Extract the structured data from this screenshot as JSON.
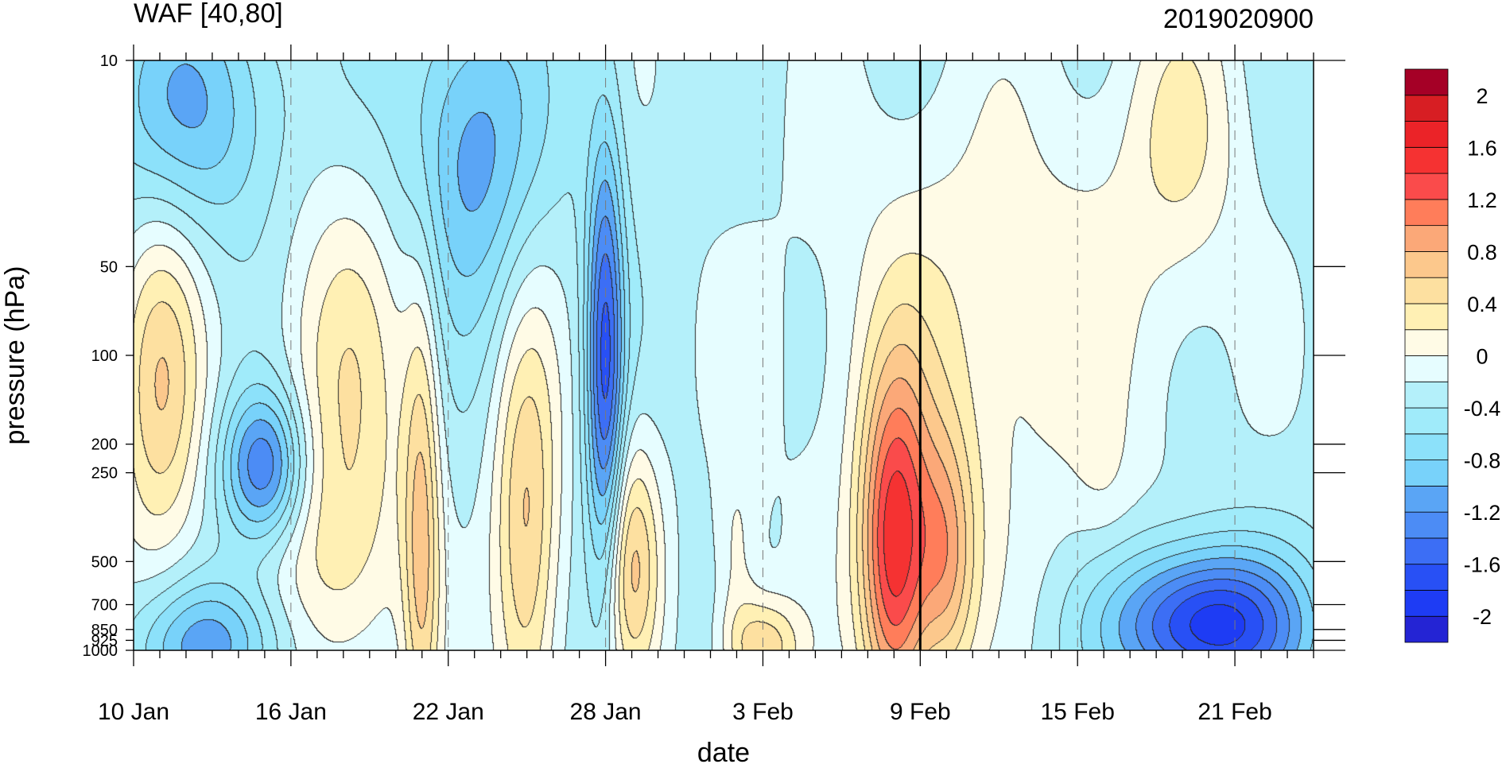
{
  "chart_data": {
    "type": "heatmap",
    "title": "WAF [40,80]",
    "subtitle": "2019020900",
    "xlabel": "date",
    "ylabel": "pressure (hPa)",
    "y_scale": "log",
    "y_reversed": true,
    "x_range": [
      "2019-01-10",
      "2019-02-24"
    ],
    "y_range": [
      1000,
      10
    ],
    "x_ticks": [
      {
        "date": "2019-01-10",
        "label": "10 Jan"
      },
      {
        "date": "2019-01-16",
        "label": "16 Jan"
      },
      {
        "date": "2019-01-22",
        "label": "22 Jan"
      },
      {
        "date": "2019-01-28",
        "label": "28 Jan"
      },
      {
        "date": "2019-02-03",
        "label": "3 Feb"
      },
      {
        "date": "2019-02-09",
        "label": "9 Feb"
      },
      {
        "date": "2019-02-15",
        "label": "15 Feb"
      },
      {
        "date": "2019-02-21",
        "label": "21 Feb"
      }
    ],
    "y_ticks": [
      {
        "value": 10,
        "label": "10"
      },
      {
        "value": 50,
        "label": "50"
      },
      {
        "value": 100,
        "label": "100"
      },
      {
        "value": 200,
        "label": "200"
      },
      {
        "value": 250,
        "label": "250"
      },
      {
        "value": 500,
        "label": "500"
      },
      {
        "value": 700,
        "label": "700"
      },
      {
        "value": 850,
        "label": "850"
      },
      {
        "value": 925,
        "label": "925"
      },
      {
        "value": 1000,
        "label": "1000"
      }
    ],
    "reference_line_date": "2019-02-09",
    "colorbar": {
      "levels": [
        -2.2,
        -2.0,
        -1.8,
        -1.6,
        -1.4,
        -1.2,
        -1.0,
        -0.8,
        -0.6,
        -0.4,
        -0.2,
        0,
        0.2,
        0.4,
        0.6,
        0.8,
        1.0,
        1.2,
        1.4,
        1.6,
        1.8,
        2.0,
        2.2
      ],
      "colors": [
        "#2424d4",
        "#1e3cf4",
        "#2850f5",
        "#3c6ef5",
        "#4c8cf5",
        "#5aa5f5",
        "#78d2fa",
        "#8ce1fa",
        "#a0ebfa",
        "#b4f0fa",
        "#e6fdff",
        "#fffbe6",
        "#fff0b4",
        "#fde0a0",
        "#fcc88c",
        "#fba878",
        "#ff7d5a",
        "#fa4b4b",
        "#f53232",
        "#eb2328",
        "#d71e23",
        "#a50026"
      ],
      "labels": [
        {
          "value": 2.0,
          "label": "2"
        },
        {
          "value": 1.6,
          "label": "1.6"
        },
        {
          "value": 1.2,
          "label": "1.2"
        },
        {
          "value": 0.8,
          "label": "0.8"
        },
        {
          "value": 0.4,
          "label": "0.4"
        },
        {
          "value": 0.0,
          "label": "0"
        },
        {
          "value": -0.4,
          "label": "-0.4"
        },
        {
          "value": -0.8,
          "label": "-0.8"
        },
        {
          "value": -1.2,
          "label": "-1.2"
        },
        {
          "value": -1.6,
          "label": "-1.6"
        },
        {
          "value": -2.0,
          "label": "-2"
        }
      ]
    },
    "background_value": -0.3,
    "features": [
      {
        "date": "2019-01-11",
        "p": 130,
        "sd": 1.2,
        "sp": 0.45,
        "v": 0.75
      },
      {
        "date": "2019-01-18",
        "p": 95,
        "sd": 1.8,
        "sp": 0.42,
        "v": 0.45
      },
      {
        "date": "2019-01-15",
        "p": 240,
        "sd": 1.1,
        "sp": 0.18,
        "v": -1.25
      },
      {
        "date": "2019-01-18",
        "p": 500,
        "sd": 1.8,
        "sp": 0.35,
        "v": 0.45
      },
      {
        "date": "2019-01-21",
        "p": 400,
        "sd": 0.5,
        "sp": 0.6,
        "v": 0.75
      },
      {
        "date": "2019-01-25",
        "p": 400,
        "sd": 0.9,
        "sp": 0.55,
        "v": 0.85
      },
      {
        "date": "2019-01-29",
        "p": 500,
        "sd": 0.8,
        "sp": 0.3,
        "v": 0.8
      },
      {
        "date": "2019-01-28",
        "p": 110,
        "sd": 0.5,
        "sp": 0.55,
        "v": -1.45
      },
      {
        "date": "2019-01-23",
        "p": 20,
        "sd": 1.8,
        "sp": 0.4,
        "v": -0.9
      },
      {
        "date": "2019-01-12",
        "p": 15,
        "sd": 2.5,
        "sp": 0.3,
        "v": -0.8
      },
      {
        "date": "2019-02-08",
        "p": 480,
        "sd": 0.9,
        "sp": 0.42,
        "v": 1.4
      },
      {
        "date": "2019-02-09",
        "p": 380,
        "sd": 1.8,
        "sp": 0.5,
        "v": 0.25
      },
      {
        "date": "2019-02-10",
        "p": 500,
        "sd": 0.8,
        "sp": 0.3,
        "v": 0.7
      },
      {
        "date": "2019-02-03",
        "p": 980,
        "sd": 1.0,
        "sp": 0.12,
        "v": 0.75
      },
      {
        "date": "2019-02-20",
        "p": 820,
        "sd": 2.5,
        "sp": 0.18,
        "v": -1.8
      },
      {
        "date": "2019-02-19",
        "p": 18,
        "sd": 1.6,
        "sp": 0.35,
        "v": 0.35
      },
      {
        "date": "2019-02-12",
        "p": 70,
        "sd": 5,
        "sp": 0.6,
        "v": 0.3
      },
      {
        "date": "2019-02-14",
        "p": 50,
        "sd": 4,
        "sp": 0.5,
        "v": -0.05
      },
      {
        "date": "2019-02-03",
        "p": 150,
        "sd": 2.5,
        "sp": 0.55,
        "v": -0.05
      },
      {
        "date": "2019-01-13",
        "p": 950,
        "sd": 2.0,
        "sp": 0.15,
        "v": -0.9
      },
      {
        "date": "2019-02-16",
        "p": 260,
        "sd": 0.8,
        "sp": 0.18,
        "v": 0.05
      },
      {
        "date": "2019-02-02",
        "p": 500,
        "sd": 0.6,
        "sp": 0.25,
        "v": 0.25
      }
    ]
  }
}
